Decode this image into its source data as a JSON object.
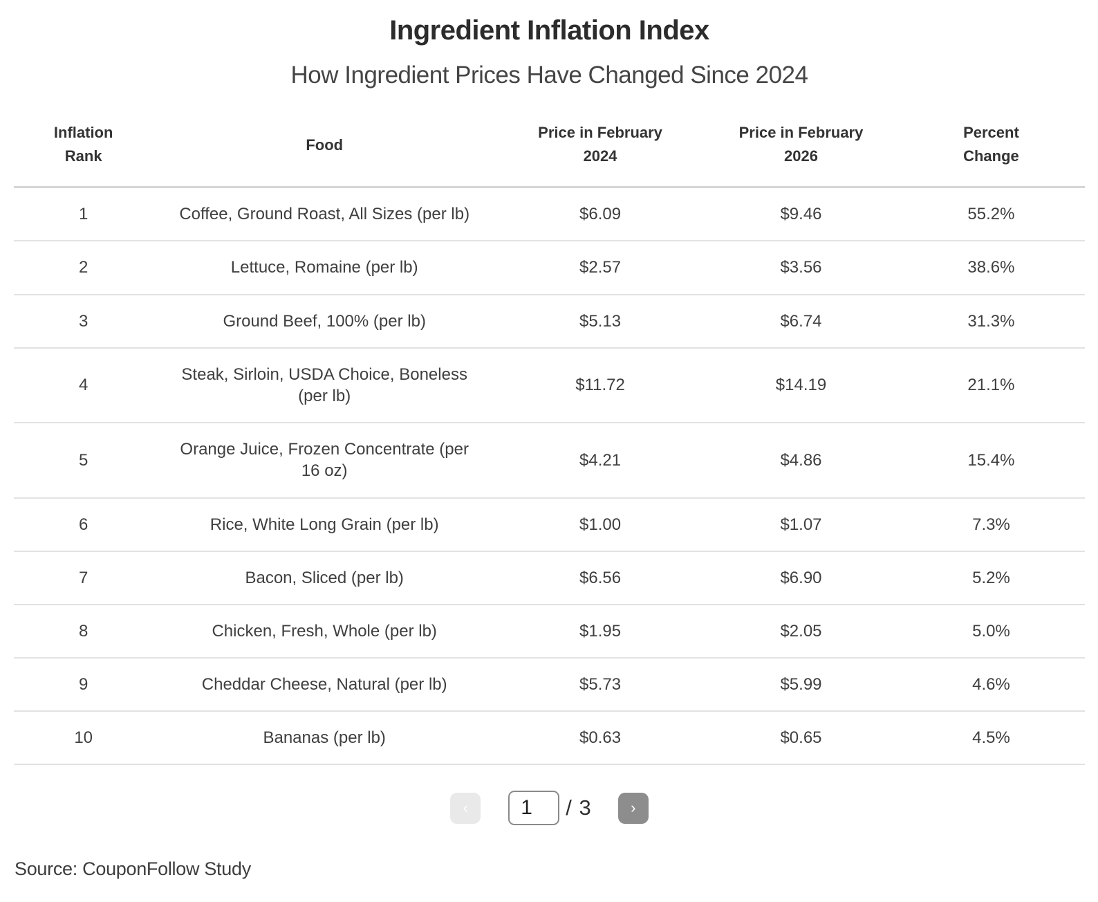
{
  "header": {
    "title": "Ingredient Inflation Index",
    "subtitle": "How Ingredient Prices Have Changed Since 2024"
  },
  "chart_data": {
    "type": "table",
    "title": "Ingredient Inflation Index",
    "subtitle": "How Ingredient Prices Have Changed Since 2024",
    "columns": [
      "Inflation Rank",
      "Food",
      "Price in February 2024",
      "Price in February 2026",
      "Percent Change"
    ],
    "rows": [
      [
        "1",
        "Coffee, Ground Roast, All Sizes (per lb)",
        "$6.09",
        "$9.46",
        "55.2%"
      ],
      [
        "2",
        "Lettuce, Romaine (per lb)",
        "$2.57",
        "$3.56",
        "38.6%"
      ],
      [
        "3",
        "Ground Beef, 100% (per lb)",
        "$5.13",
        "$6.74",
        "31.3%"
      ],
      [
        "4",
        "Steak, Sirloin, USDA Choice, Boneless (per lb)",
        "$11.72",
        "$14.19",
        "21.1%"
      ],
      [
        "5",
        "Orange Juice, Frozen Concentrate (per 16 oz)",
        "$4.21",
        "$4.86",
        "15.4%"
      ],
      [
        "6",
        "Rice, White Long Grain (per lb)",
        "$1.00",
        "$1.07",
        "7.3%"
      ],
      [
        "7",
        "Bacon, Sliced (per lb)",
        "$6.56",
        "$6.90",
        "5.2%"
      ],
      [
        "8",
        "Chicken, Fresh, Whole (per lb)",
        "$1.95",
        "$2.05",
        "5.0%"
      ],
      [
        "9",
        "Cheddar Cheese, Natural (per lb)",
        "$5.73",
        "$5.99",
        "4.6%"
      ],
      [
        "10",
        "Bananas (per lb)",
        "$0.63",
        "$0.65",
        "4.5%"
      ]
    ],
    "legend": null,
    "grid": "horizontal-row-dividers",
    "source": "Source: CouponFollow Study",
    "pagination": {
      "current_page": 1,
      "total_pages": 3
    }
  },
  "pagination": {
    "prev_icon": "‹",
    "current_page": "1",
    "total_label": "/ 3",
    "next_icon": "›"
  },
  "footer": {
    "source": "Source: CouponFollow Study"
  },
  "colors": {
    "title_text": "#2c2c2c",
    "body_text": "#3f3f3f",
    "header_divider": "#d6d6d6",
    "row_divider": "#e2e2e2",
    "next_button_bg": "#8d8d8d",
    "prev_button_bg": "#e9e9e9",
    "button_icon": "#ffffff",
    "input_border": "#8a8a8a"
  }
}
